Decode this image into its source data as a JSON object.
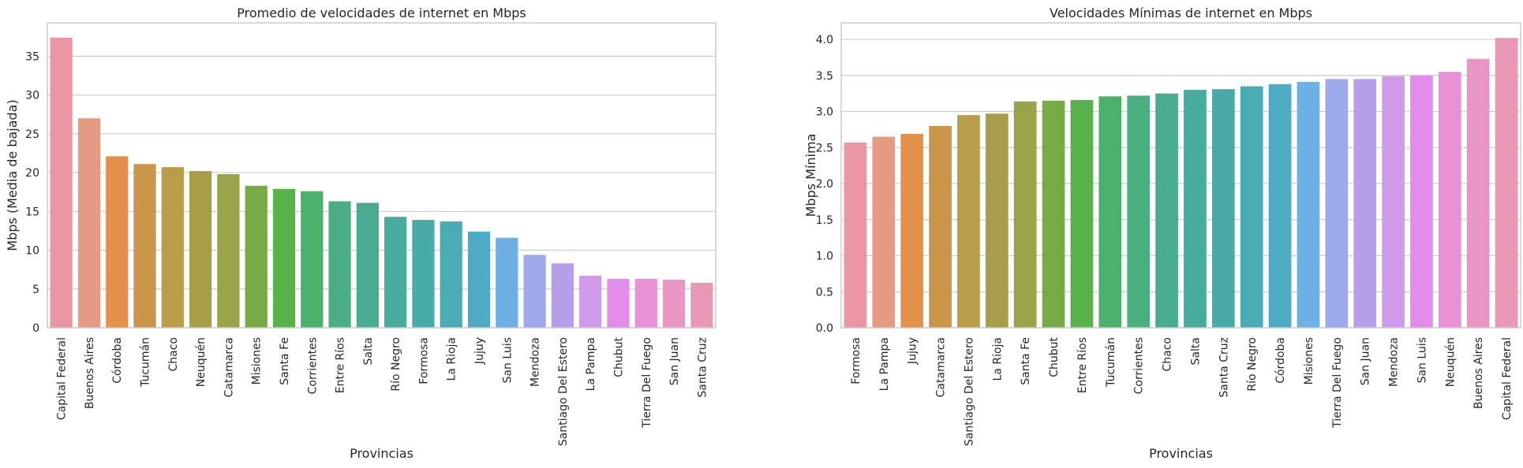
{
  "charts": [
    {
      "type": "bar",
      "title": "Promedio de velocidades de internet en Mbps",
      "xlabel": "Provincias",
      "ylabel": "Mbps (Media de bajada)",
      "ylim": [
        0,
        39.3
      ],
      "yticks": [
        "0",
        "5",
        "10",
        "15",
        "20",
        "25",
        "30",
        "35"
      ],
      "grid": "horizontal",
      "categories": [
        "Capital Federal",
        "Buenos Aires",
        "Córdoba",
        "Tucumán",
        "Chaco",
        "Neuquén",
        "Catamarca",
        "Misiones",
        "Santa Fe",
        "Corrientes",
        "Entre Ríos",
        "Salta",
        "Río Negro",
        "Formosa",
        "La Rioja",
        "Jujuy",
        "San Luis",
        "Mendoza",
        "Santiago Del Estero",
        "La Pampa",
        "Chubut",
        "Tierra Del Fuego",
        "San Juan",
        "Santa Cruz"
      ],
      "values": [
        37.4,
        27.0,
        22.1,
        21.1,
        20.7,
        20.2,
        19.8,
        18.3,
        17.9,
        17.6,
        16.3,
        16.1,
        14.3,
        13.9,
        13.7,
        12.4,
        11.6,
        9.4,
        8.3,
        6.7,
        6.3,
        6.3,
        6.2,
        5.8
      ],
      "colors": [
        "#ea96a3",
        "#e59b82",
        "#e3924e",
        "#c9954b",
        "#b89d4a",
        "#a89e49",
        "#99a448",
        "#78ab48",
        "#59b04d",
        "#4ab06c",
        "#4aae82",
        "#4aaa92",
        "#49aa9e",
        "#4aaaa8",
        "#4aabb4",
        "#4dacc3",
        "#6eb0e4",
        "#9da9eb",
        "#b79eea",
        "#cf9ae9",
        "#e38dea",
        "#e991d7",
        "#e896c4",
        "#e897b5"
      ]
    },
    {
      "type": "bar",
      "title": "Velocidades Mínimas de internet en Mbps",
      "xlabel": "Provincias",
      "ylabel": "Mbps Mínima",
      "ylim": [
        0,
        4.23
      ],
      "yticks": [
        "0.0",
        "0.5",
        "1.0",
        "1.5",
        "2.0",
        "2.5",
        "3.0",
        "3.5",
        "4.0"
      ],
      "grid": "horizontal",
      "categories": [
        "Formosa",
        "La Pampa",
        "Jujuy",
        "Catamarca",
        "Santiago Del Estero",
        "La Rioja",
        "Santa Fe",
        "Chubut",
        "Entre Ríos",
        "Tucumán",
        "Corrientes",
        "Chaco",
        "Salta",
        "Santa Cruz",
        "Río Negro",
        "Córdoba",
        "Misiones",
        "Tierra Del Fuego",
        "San Juan",
        "Mendoza",
        "San Luis",
        "Neuquén",
        "Buenos Aires",
        "Capital Federal"
      ],
      "values": [
        2.57,
        2.65,
        2.69,
        2.8,
        2.95,
        2.97,
        3.14,
        3.15,
        3.16,
        3.21,
        3.22,
        3.25,
        3.3,
        3.31,
        3.35,
        3.38,
        3.41,
        3.45,
        3.45,
        3.49,
        3.5,
        3.55,
        3.73,
        4.02
      ],
      "colors": [
        "#ea96a3",
        "#e59b82",
        "#e3924e",
        "#c9954b",
        "#b89d4a",
        "#a89e49",
        "#99a448",
        "#78ab48",
        "#59b04d",
        "#4ab06c",
        "#4aae82",
        "#4aaa92",
        "#49aa9e",
        "#4aaaa8",
        "#4aabb4",
        "#4dacc3",
        "#6eb0e4",
        "#9da9eb",
        "#b79eea",
        "#cf9ae9",
        "#e38dea",
        "#e991d7",
        "#e896c4",
        "#e897b5"
      ]
    }
  ]
}
